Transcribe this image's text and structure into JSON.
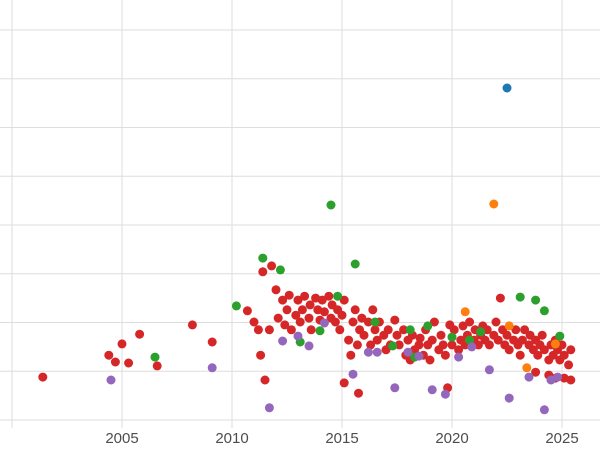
{
  "chart_data": {
    "type": "scatter",
    "title": "",
    "xlabel": "",
    "ylabel": "",
    "x_ticks": [
      2005,
      2010,
      2015,
      2020,
      2025
    ],
    "grid": true,
    "grid_x_years": [
      2000,
      2005,
      2010,
      2015,
      2020,
      2025
    ],
    "grid_y_values": [
      0,
      1,
      2,
      3,
      4,
      5,
      6,
      7,
      8
    ],
    "x_range": [
      1999.45,
      2026.7
    ],
    "y_range": [
      -0.3,
      8.6
    ],
    "y_axis_labels_visible": false,
    "legend": "none",
    "colors": {
      "blue": "#1f77b4",
      "orange": "#ff7f0e",
      "green": "#2ca02c",
      "red": "#d62728",
      "purple": "#9467bd",
      "grid": "#dedede",
      "tick_label": "#4d4d4d"
    },
    "mapping": {
      "x0": 2005,
      "px0": 122,
      "pxPerYear": 22,
      "py0": 420,
      "pyPerUnit": 48.75
    },
    "point_radius": 4.5,
    "series": [
      {
        "name": "red",
        "color": "#d62728",
        "points": [
          [
            2001.4,
            0.88
          ],
          [
            2004.4,
            1.33
          ],
          [
            2004.7,
            1.19
          ],
          [
            2005.0,
            1.56
          ],
          [
            2005.3,
            1.17
          ],
          [
            2005.8,
            1.76
          ],
          [
            2006.6,
            1.11
          ],
          [
            2008.2,
            1.95
          ],
          [
            2009.1,
            1.6
          ],
          [
            2010.7,
            2.24
          ],
          [
            2011.0,
            2.01
          ],
          [
            2011.2,
            1.85
          ],
          [
            2011.4,
            3.04
          ],
          [
            2011.8,
            3.16
          ],
          [
            2012.0,
            2.67
          ],
          [
            2011.3,
            1.33
          ],
          [
            2011.5,
            0.82
          ],
          [
            2011.7,
            1.85
          ],
          [
            2012.1,
            2.09
          ],
          [
            2012.3,
            2.46
          ],
          [
            2012.4,
            1.95
          ],
          [
            2012.5,
            2.26
          ],
          [
            2012.6,
            2.56
          ],
          [
            2012.7,
            1.85
          ],
          [
            2012.9,
            2.15
          ],
          [
            2013.0,
            2.46
          ],
          [
            2013.1,
            2.01
          ],
          [
            2013.2,
            2.26
          ],
          [
            2013.3,
            2.54
          ],
          [
            2013.5,
            2.09
          ],
          [
            2013.55,
            2.36
          ],
          [
            2013.6,
            1.85
          ],
          [
            2013.8,
            2.5
          ],
          [
            2013.9,
            2.26
          ],
          [
            2014.0,
            2.05
          ],
          [
            2014.1,
            2.46
          ],
          [
            2014.2,
            2.22
          ],
          [
            2014.4,
            2.54
          ],
          [
            2014.5,
            2.09
          ],
          [
            2014.55,
            2.36
          ],
          [
            2014.7,
            2.01
          ],
          [
            2014.8,
            2.26
          ],
          [
            2014.9,
            1.85
          ],
          [
            2015.0,
            2.15
          ],
          [
            2015.1,
            2.46
          ],
          [
            2015.3,
            1.64
          ],
          [
            2015.4,
            1.33
          ],
          [
            2015.5,
            2.01
          ],
          [
            2015.6,
            2.26
          ],
          [
            2015.7,
            1.54
          ],
          [
            2015.8,
            1.85
          ],
          [
            2015.1,
            0.76
          ],
          [
            2015.75,
            0.55
          ],
          [
            2015.9,
            2.09
          ],
          [
            2016.0,
            1.74
          ],
          [
            2016.2,
            2.01
          ],
          [
            2016.3,
            1.54
          ],
          [
            2016.4,
            2.26
          ],
          [
            2016.5,
            1.85
          ],
          [
            2016.6,
            1.64
          ],
          [
            2016.7,
            2.01
          ],
          [
            2016.9,
            1.74
          ],
          [
            2017.0,
            1.44
          ],
          [
            2017.1,
            1.85
          ],
          [
            2017.2,
            1.54
          ],
          [
            2017.4,
            2.05
          ],
          [
            2017.5,
            1.74
          ],
          [
            2017.6,
            1.54
          ],
          [
            2017.8,
            1.85
          ],
          [
            2017.9,
            1.33
          ],
          [
            2018.0,
            1.64
          ],
          [
            2018.1,
            1.23
          ],
          [
            2018.2,
            1.74
          ],
          [
            2018.3,
            1.44
          ],
          [
            2018.5,
            1.54
          ],
          [
            2018.55,
            1.68
          ],
          [
            2018.7,
            1.33
          ],
          [
            2018.8,
            1.85
          ],
          [
            2018.9,
            1.54
          ],
          [
            2019.0,
            1.23
          ],
          [
            2019.1,
            1.64
          ],
          [
            2019.2,
            2.01
          ],
          [
            2019.4,
            1.44
          ],
          [
            2019.5,
            1.74
          ],
          [
            2019.6,
            1.54
          ],
          [
            2019.7,
            1.33
          ],
          [
            2019.8,
            0.66
          ],
          [
            2019.9,
            1.95
          ],
          [
            2020.0,
            1.54
          ],
          [
            2020.1,
            1.85
          ],
          [
            2020.3,
            1.44
          ],
          [
            2020.4,
            1.64
          ],
          [
            2020.5,
            1.93
          ],
          [
            2020.6,
            1.54
          ],
          [
            2020.7,
            1.74
          ],
          [
            2020.8,
            2.01
          ],
          [
            2021.0,
            1.64
          ],
          [
            2021.05,
            1.85
          ],
          [
            2021.2,
            1.54
          ],
          [
            2021.3,
            1.74
          ],
          [
            2021.4,
            1.93
          ],
          [
            2021.5,
            1.64
          ],
          [
            2021.6,
            1.85
          ],
          [
            2021.7,
            1.54
          ],
          [
            2021.9,
            1.74
          ],
          [
            2022.0,
            2.01
          ],
          [
            2022.1,
            1.64
          ],
          [
            2022.2,
            2.5
          ],
          [
            2022.3,
            1.85
          ],
          [
            2022.4,
            1.54
          ],
          [
            2022.5,
            1.74
          ],
          [
            2022.6,
            1.44
          ],
          [
            2022.8,
            1.64
          ],
          [
            2022.9,
            1.85
          ],
          [
            2023.0,
            1.54
          ],
          [
            2023.1,
            1.33
          ],
          [
            2023.2,
            1.64
          ],
          [
            2023.3,
            1.85
          ],
          [
            2023.5,
            1.54
          ],
          [
            2023.55,
            1.74
          ],
          [
            2023.7,
            1.44
          ],
          [
            2023.8,
            1.64
          ],
          [
            2023.9,
            1.33
          ],
          [
            2024.0,
            1.54
          ],
          [
            2024.1,
            1.74
          ],
          [
            2024.2,
            1.44
          ],
          [
            2024.4,
            1.23
          ],
          [
            2024.5,
            1.54
          ],
          [
            2024.6,
            1.33
          ],
          [
            2024.7,
            1.64
          ],
          [
            2024.8,
            1.44
          ],
          [
            2024.9,
            1.23
          ],
          [
            2025.0,
            1.54
          ],
          [
            2025.1,
            1.33
          ],
          [
            2025.3,
            1.13
          ],
          [
            2025.4,
            1.44
          ],
          [
            2024.4,
            0.92
          ],
          [
            2024.7,
            0.86
          ],
          [
            2025.1,
            0.86
          ],
          [
            2025.4,
            0.82
          ],
          [
            2023.8,
            0.98
          ]
        ]
      },
      {
        "name": "green",
        "color": "#2ca02c",
        "points": [
          [
            2006.5,
            1.29
          ],
          [
            2010.2,
            2.34
          ],
          [
            2011.4,
            3.32
          ],
          [
            2012.2,
            3.08
          ],
          [
            2013.1,
            1.6
          ],
          [
            2014.0,
            1.83
          ],
          [
            2014.5,
            4.41
          ],
          [
            2014.8,
            2.54
          ],
          [
            2015.6,
            3.2
          ],
          [
            2016.5,
            2.01
          ],
          [
            2017.3,
            1.52
          ],
          [
            2018.1,
            1.85
          ],
          [
            2018.3,
            1.29
          ],
          [
            2018.9,
            1.93
          ],
          [
            2020.0,
            1.7
          ],
          [
            2020.8,
            1.64
          ],
          [
            2021.3,
            1.81
          ],
          [
            2023.1,
            2.52
          ],
          [
            2023.8,
            2.46
          ],
          [
            2024.2,
            2.24
          ],
          [
            2024.9,
            1.72
          ]
        ]
      },
      {
        "name": "purple",
        "color": "#9467bd",
        "points": [
          [
            2004.5,
            0.82
          ],
          [
            2009.1,
            1.07
          ],
          [
            2011.7,
            0.25
          ],
          [
            2012.3,
            1.62
          ],
          [
            2013.0,
            1.72
          ],
          [
            2013.5,
            1.52
          ],
          [
            2014.2,
            1.99
          ],
          [
            2015.5,
            0.94
          ],
          [
            2016.2,
            1.39
          ],
          [
            2016.6,
            1.39
          ],
          [
            2017.4,
            0.66
          ],
          [
            2018.0,
            1.39
          ],
          [
            2018.5,
            1.31
          ],
          [
            2019.1,
            0.62
          ],
          [
            2019.7,
            0.53
          ],
          [
            2020.3,
            1.29
          ],
          [
            2020.9,
            1.5
          ],
          [
            2021.7,
            1.03
          ],
          [
            2022.6,
            0.45
          ],
          [
            2023.5,
            0.88
          ],
          [
            2024.2,
            0.21
          ],
          [
            2024.5,
            0.82
          ],
          [
            2024.8,
            0.88
          ]
        ]
      },
      {
        "name": "orange",
        "color": "#ff7f0e",
        "points": [
          [
            2020.6,
            2.22
          ],
          [
            2021.9,
            4.43
          ],
          [
            2022.6,
            1.93
          ],
          [
            2023.4,
            1.07
          ],
          [
            2024.7,
            1.56
          ]
        ]
      },
      {
        "name": "blue",
        "color": "#1f77b4",
        "points": [
          [
            2022.5,
            6.81
          ]
        ]
      }
    ]
  },
  "axis": {
    "x_tick_labels": [
      "2005",
      "2010",
      "2015",
      "2020",
      "2025"
    ],
    "tick_font_size": 15
  }
}
